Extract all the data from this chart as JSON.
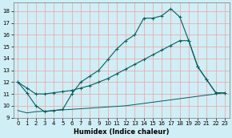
{
  "xlabel": "Humidex (Indice chaleur)",
  "bg_color": "#d0eef5",
  "grid_color": "#f0a0a0",
  "line_color": "#006060",
  "xlim": [
    -0.5,
    23.5
  ],
  "ylim": [
    9.0,
    18.7
  ],
  "yticks": [
    9,
    10,
    11,
    12,
    13,
    14,
    15,
    16,
    17,
    18
  ],
  "xticks": [
    0,
    1,
    2,
    3,
    4,
    5,
    6,
    7,
    8,
    9,
    10,
    11,
    12,
    13,
    14,
    15,
    16,
    17,
    18,
    19,
    20,
    21,
    22,
    23
  ],
  "line1_x": [
    0,
    1,
    2,
    3,
    4,
    5,
    6,
    7,
    8,
    9,
    10,
    11,
    12,
    13,
    14,
    15,
    16,
    17,
    18,
    19,
    20,
    21,
    22,
    23
  ],
  "line1_y": [
    9.6,
    9.4,
    9.5,
    9.55,
    9.6,
    9.65,
    9.7,
    9.75,
    9.8,
    9.85,
    9.9,
    9.95,
    10.0,
    10.1,
    10.2,
    10.3,
    10.4,
    10.5,
    10.6,
    10.7,
    10.8,
    10.9,
    11.0,
    11.1
  ],
  "line2_x": [
    0,
    1,
    2,
    3,
    4,
    5,
    6,
    7,
    8,
    9,
    10,
    11,
    12,
    13,
    14,
    15,
    16,
    17,
    18,
    19,
    20,
    21,
    22,
    23
  ],
  "line2_y": [
    12.0,
    11.1,
    10.0,
    9.5,
    9.6,
    9.7,
    11.0,
    12.0,
    12.5,
    13.0,
    13.9,
    14.8,
    15.5,
    16.0,
    17.4,
    17.4,
    17.6,
    18.2,
    17.5,
    15.5,
    13.3,
    12.2,
    11.1,
    11.1
  ],
  "line3_x": [
    0,
    1,
    2,
    3,
    4,
    5,
    6,
    7,
    8,
    9,
    10,
    11,
    12,
    13,
    14,
    15,
    16,
    17,
    18,
    19,
    20,
    21,
    22,
    23
  ],
  "line3_y": [
    12.0,
    11.5,
    11.0,
    11.0,
    11.1,
    11.2,
    11.3,
    11.5,
    11.7,
    12.0,
    12.3,
    12.7,
    13.1,
    13.5,
    13.9,
    14.3,
    14.7,
    15.1,
    15.5,
    15.5,
    13.3,
    12.2,
    11.1,
    11.1
  ],
  "marker_size": 2.5
}
